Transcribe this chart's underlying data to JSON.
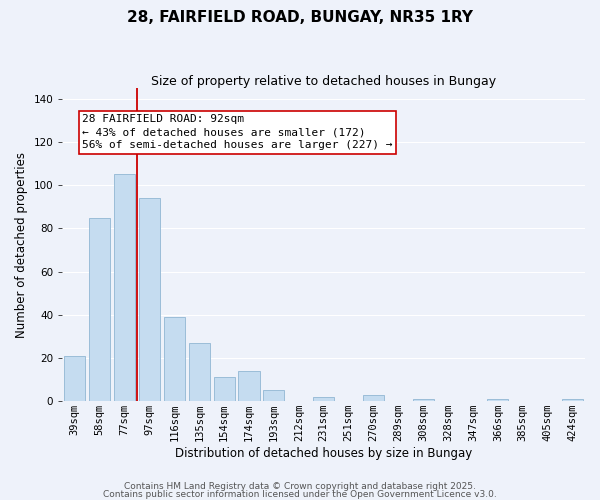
{
  "title": "28, FAIRFIELD ROAD, BUNGAY, NR35 1RY",
  "subtitle": "Size of property relative to detached houses in Bungay",
  "xlabel": "Distribution of detached houses by size in Bungay",
  "ylabel": "Number of detached properties",
  "bar_color": "#c5dcf0",
  "bar_edge_color": "#9bbdd8",
  "background_color": "#eef2fa",
  "grid_color": "#ffffff",
  "categories": [
    "39sqm",
    "58sqm",
    "77sqm",
    "97sqm",
    "116sqm",
    "135sqm",
    "154sqm",
    "174sqm",
    "193sqm",
    "212sqm",
    "231sqm",
    "251sqm",
    "270sqm",
    "289sqm",
    "308sqm",
    "328sqm",
    "347sqm",
    "366sqm",
    "385sqm",
    "405sqm",
    "424sqm"
  ],
  "values": [
    21,
    85,
    105,
    94,
    39,
    27,
    11,
    14,
    5,
    0,
    2,
    0,
    3,
    0,
    1,
    0,
    0,
    1,
    0,
    0,
    1
  ],
  "vline_color": "#cc0000",
  "vline_x_idx": 3,
  "annotation_text": "28 FAIRFIELD ROAD: 92sqm\n← 43% of detached houses are smaller (172)\n56% of semi-detached houses are larger (227) →",
  "ylim": [
    0,
    145
  ],
  "yticks": [
    0,
    20,
    40,
    60,
    80,
    100,
    120,
    140
  ],
  "footnote1": "Contains HM Land Registry data © Crown copyright and database right 2025.",
  "footnote2": "Contains public sector information licensed under the Open Government Licence v3.0.",
  "title_fontsize": 11,
  "subtitle_fontsize": 9,
  "axis_label_fontsize": 8.5,
  "tick_fontsize": 7.5,
  "annotation_fontsize": 8,
  "footnote_fontsize": 6.5
}
